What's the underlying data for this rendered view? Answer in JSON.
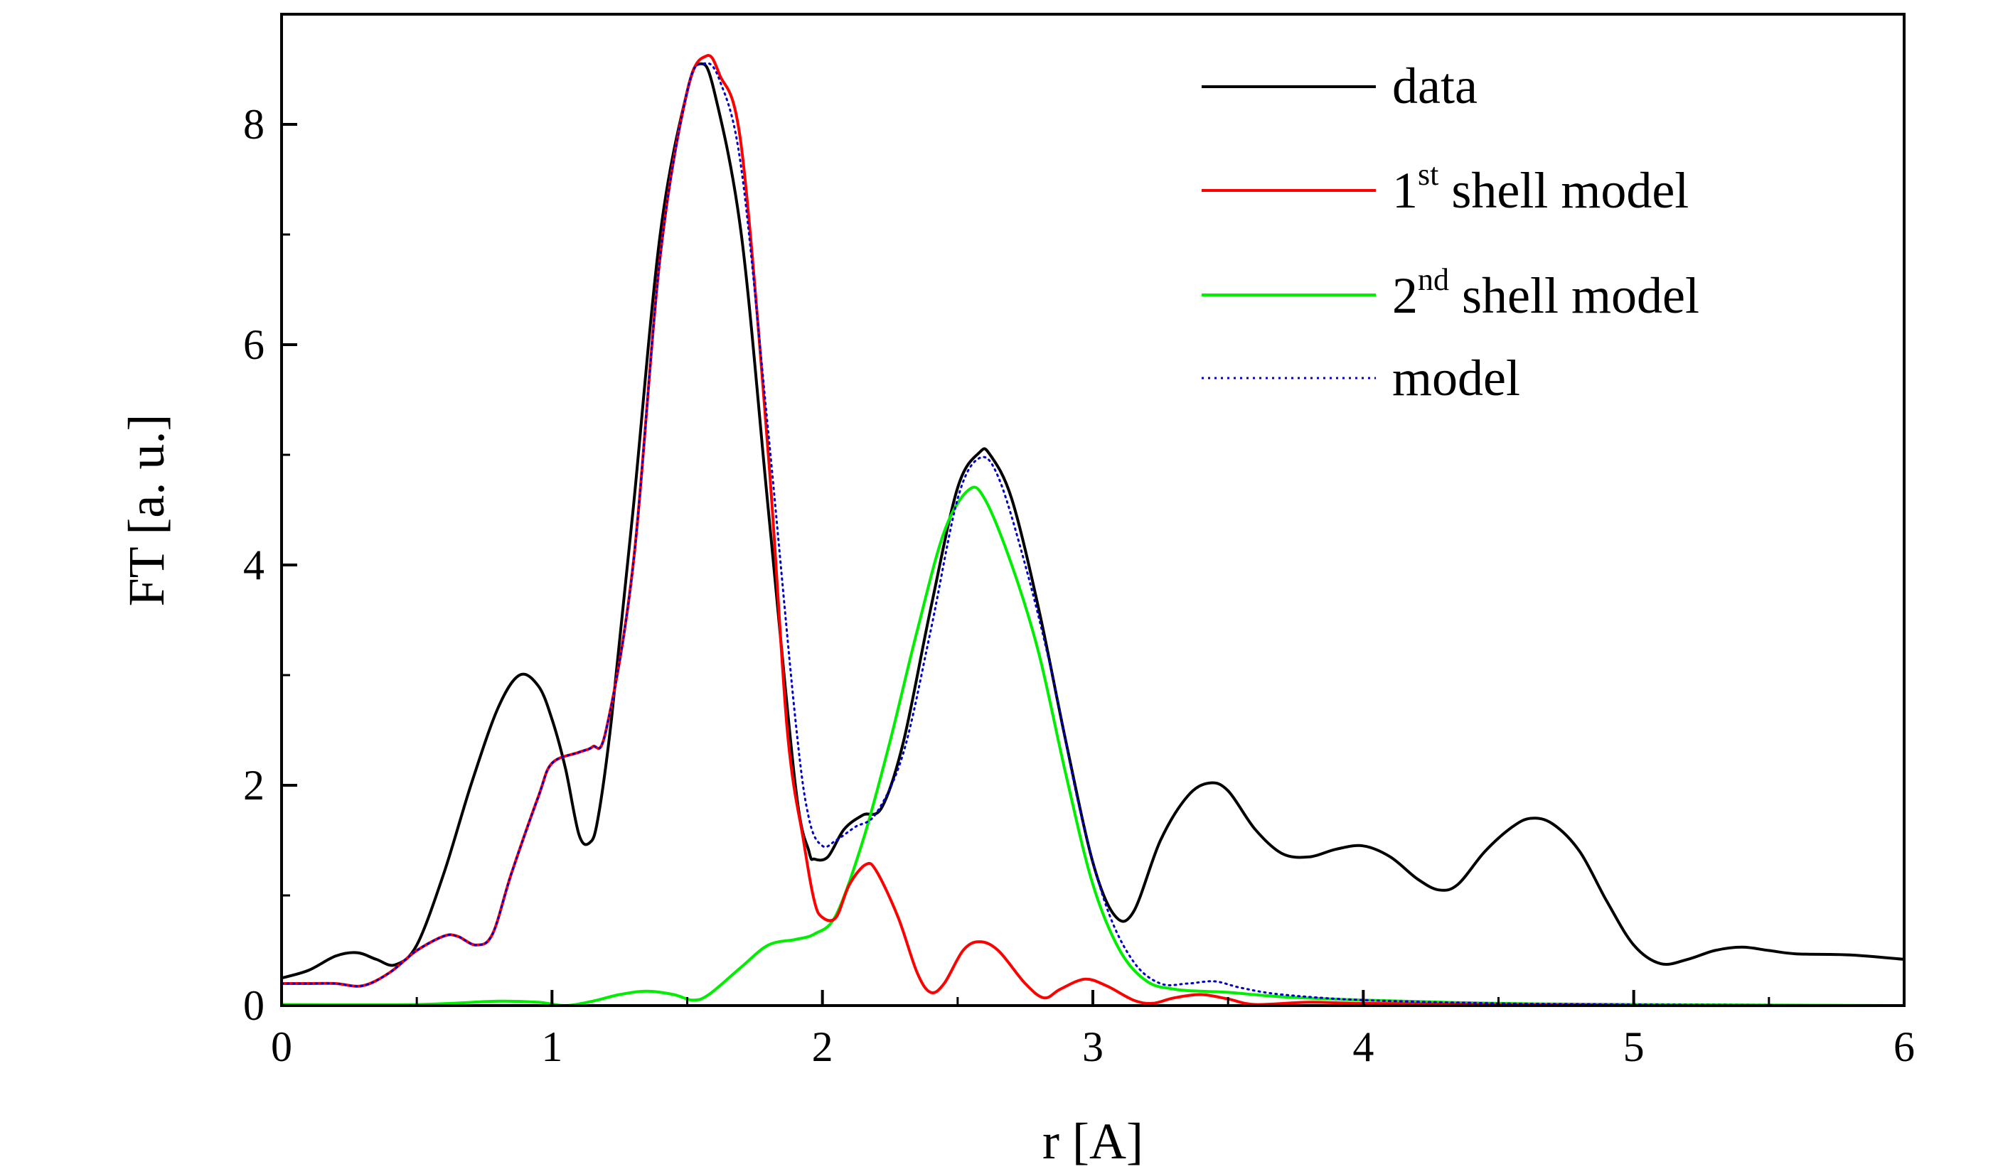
{
  "chart_data": {
    "type": "line",
    "xlabel": "r [A]",
    "ylabel": "FT [a. u.]",
    "xlim": [
      0,
      6
    ],
    "ylim": [
      0,
      9
    ],
    "xticks": [
      "0",
      "1",
      "2",
      "3",
      "4",
      "5",
      "6"
    ],
    "yticks": [
      "0",
      "2",
      "4",
      "6",
      "8"
    ],
    "grid": false,
    "legend_position": "top-right",
    "series": [
      {
        "name": "data",
        "color": "#000000",
        "style": "solid",
        "points": [
          [
            0,
            0.25
          ],
          [
            0.1,
            0.32
          ],
          [
            0.2,
            0.45
          ],
          [
            0.28,
            0.48
          ],
          [
            0.35,
            0.42
          ],
          [
            0.42,
            0.37
          ],
          [
            0.5,
            0.55
          ],
          [
            0.6,
            1.2
          ],
          [
            0.7,
            2.0
          ],
          [
            0.8,
            2.7
          ],
          [
            0.88,
            3.0
          ],
          [
            0.95,
            2.9
          ],
          [
            1.0,
            2.6
          ],
          [
            1.05,
            2.15
          ],
          [
            1.1,
            1.55
          ],
          [
            1.14,
            1.48
          ],
          [
            1.17,
            1.7
          ],
          [
            1.22,
            2.6
          ],
          [
            1.3,
            4.5
          ],
          [
            1.4,
            7.0
          ],
          [
            1.5,
            8.3
          ],
          [
            1.55,
            8.55
          ],
          [
            1.6,
            8.3
          ],
          [
            1.7,
            7.0
          ],
          [
            1.8,
            4.5
          ],
          [
            1.9,
            2.0
          ],
          [
            1.95,
            1.4
          ],
          [
            1.97,
            1.33
          ],
          [
            2.02,
            1.35
          ],
          [
            2.08,
            1.6
          ],
          [
            2.15,
            1.73
          ],
          [
            2.22,
            1.8
          ],
          [
            2.3,
            2.4
          ],
          [
            2.4,
            3.6
          ],
          [
            2.5,
            4.7
          ],
          [
            2.58,
            5.02
          ],
          [
            2.62,
            5.0
          ],
          [
            2.7,
            4.6
          ],
          [
            2.8,
            3.6
          ],
          [
            2.9,
            2.4
          ],
          [
            3.0,
            1.3
          ],
          [
            3.08,
            0.82
          ],
          [
            3.15,
            0.85
          ],
          [
            3.25,
            1.5
          ],
          [
            3.35,
            1.9
          ],
          [
            3.43,
            2.02
          ],
          [
            3.5,
            1.95
          ],
          [
            3.6,
            1.6
          ],
          [
            3.7,
            1.38
          ],
          [
            3.8,
            1.35
          ],
          [
            3.9,
            1.42
          ],
          [
            4.0,
            1.45
          ],
          [
            4.1,
            1.35
          ],
          [
            4.2,
            1.15
          ],
          [
            4.28,
            1.05
          ],
          [
            4.35,
            1.1
          ],
          [
            4.45,
            1.4
          ],
          [
            4.55,
            1.62
          ],
          [
            4.62,
            1.7
          ],
          [
            4.7,
            1.65
          ],
          [
            4.8,
            1.4
          ],
          [
            4.9,
            0.95
          ],
          [
            5.0,
            0.55
          ],
          [
            5.1,
            0.38
          ],
          [
            5.2,
            0.42
          ],
          [
            5.3,
            0.5
          ],
          [
            5.4,
            0.53
          ],
          [
            5.5,
            0.5
          ],
          [
            5.6,
            0.47
          ],
          [
            5.8,
            0.46
          ],
          [
            6.0,
            0.42
          ]
        ]
      },
      {
        "name": "1st shell model",
        "color": "#ff0000",
        "style": "solid",
        "points": [
          [
            0,
            0.2
          ],
          [
            0.1,
            0.2
          ],
          [
            0.2,
            0.2
          ],
          [
            0.3,
            0.18
          ],
          [
            0.4,
            0.3
          ],
          [
            0.5,
            0.5
          ],
          [
            0.6,
            0.63
          ],
          [
            0.65,
            0.63
          ],
          [
            0.72,
            0.55
          ],
          [
            0.78,
            0.65
          ],
          [
            0.85,
            1.2
          ],
          [
            0.95,
            1.9
          ],
          [
            1.0,
            2.2
          ],
          [
            1.1,
            2.3
          ],
          [
            1.15,
            2.35
          ],
          [
            1.2,
            2.5
          ],
          [
            1.3,
            4.0
          ],
          [
            1.4,
            6.8
          ],
          [
            1.5,
            8.3
          ],
          [
            1.57,
            8.62
          ],
          [
            1.62,
            8.45
          ],
          [
            1.7,
            7.8
          ],
          [
            1.8,
            5.0
          ],
          [
            1.87,
            2.5
          ],
          [
            1.93,
            1.5
          ],
          [
            1.97,
            0.95
          ],
          [
            2.0,
            0.8
          ],
          [
            2.05,
            0.8
          ],
          [
            2.1,
            1.1
          ],
          [
            2.16,
            1.28
          ],
          [
            2.2,
            1.22
          ],
          [
            2.28,
            0.8
          ],
          [
            2.35,
            0.3
          ],
          [
            2.4,
            0.12
          ],
          [
            2.45,
            0.2
          ],
          [
            2.52,
            0.5
          ],
          [
            2.58,
            0.58
          ],
          [
            2.65,
            0.5
          ],
          [
            2.75,
            0.2
          ],
          [
            2.82,
            0.07
          ],
          [
            2.88,
            0.15
          ],
          [
            2.97,
            0.24
          ],
          [
            3.05,
            0.18
          ],
          [
            3.15,
            0.05
          ],
          [
            3.22,
            0.02
          ],
          [
            3.3,
            0.07
          ],
          [
            3.4,
            0.1
          ],
          [
            3.5,
            0.06
          ],
          [
            3.6,
            0.01
          ],
          [
            3.8,
            0.03
          ],
          [
            4.0,
            0.02
          ],
          [
            4.5,
            0.01
          ],
          [
            5.0,
            0.0
          ],
          [
            6.0,
            0.0
          ]
        ]
      },
      {
        "name": "2nd shell model",
        "color": "#00ee00",
        "style": "solid",
        "points": [
          [
            0,
            0.01
          ],
          [
            0.5,
            0.01
          ],
          [
            0.8,
            0.04
          ],
          [
            0.95,
            0.03
          ],
          [
            1.05,
            0.0
          ],
          [
            1.15,
            0.04
          ],
          [
            1.25,
            0.1
          ],
          [
            1.35,
            0.13
          ],
          [
            1.45,
            0.1
          ],
          [
            1.52,
            0.05
          ],
          [
            1.58,
            0.1
          ],
          [
            1.7,
            0.35
          ],
          [
            1.8,
            0.55
          ],
          [
            1.9,
            0.6
          ],
          [
            1.97,
            0.65
          ],
          [
            2.05,
            0.82
          ],
          [
            2.15,
            1.5
          ],
          [
            2.25,
            2.4
          ],
          [
            2.35,
            3.4
          ],
          [
            2.45,
            4.3
          ],
          [
            2.54,
            4.68
          ],
          [
            2.6,
            4.6
          ],
          [
            2.7,
            4.0
          ],
          [
            2.8,
            3.2
          ],
          [
            2.9,
            2.1
          ],
          [
            3.0,
            1.1
          ],
          [
            3.1,
            0.5
          ],
          [
            3.2,
            0.22
          ],
          [
            3.3,
            0.15
          ],
          [
            3.4,
            0.13
          ],
          [
            3.5,
            0.12
          ],
          [
            3.7,
            0.08
          ],
          [
            4.0,
            0.05
          ],
          [
            4.5,
            0.02
          ],
          [
            5.0,
            0.01
          ],
          [
            6.0,
            0.0
          ]
        ]
      },
      {
        "name": "model",
        "color": "#0000cc",
        "style": "dotted",
        "points": [
          [
            0,
            0.2
          ],
          [
            0.1,
            0.2
          ],
          [
            0.2,
            0.2
          ],
          [
            0.3,
            0.18
          ],
          [
            0.4,
            0.3
          ],
          [
            0.5,
            0.5
          ],
          [
            0.6,
            0.63
          ],
          [
            0.65,
            0.63
          ],
          [
            0.72,
            0.55
          ],
          [
            0.78,
            0.65
          ],
          [
            0.85,
            1.2
          ],
          [
            0.95,
            1.9
          ],
          [
            1.0,
            2.2
          ],
          [
            1.1,
            2.3
          ],
          [
            1.15,
            2.35
          ],
          [
            1.2,
            2.5
          ],
          [
            1.3,
            4.0
          ],
          [
            1.4,
            6.8
          ],
          [
            1.5,
            8.3
          ],
          [
            1.56,
            8.55
          ],
          [
            1.62,
            8.4
          ],
          [
            1.7,
            7.6
          ],
          [
            1.8,
            5.2
          ],
          [
            1.9,
            2.6
          ],
          [
            1.95,
            1.7
          ],
          [
            2.0,
            1.45
          ],
          [
            2.05,
            1.5
          ],
          [
            2.12,
            1.62
          ],
          [
            2.2,
            1.75
          ],
          [
            2.3,
            2.3
          ],
          [
            2.4,
            3.4
          ],
          [
            2.5,
            4.6
          ],
          [
            2.58,
            4.97
          ],
          [
            2.65,
            4.8
          ],
          [
            2.75,
            4.0
          ],
          [
            2.85,
            3.0
          ],
          [
            2.95,
            1.8
          ],
          [
            3.05,
            0.9
          ],
          [
            3.15,
            0.4
          ],
          [
            3.25,
            0.2
          ],
          [
            3.35,
            0.2
          ],
          [
            3.45,
            0.22
          ],
          [
            3.55,
            0.16
          ],
          [
            3.7,
            0.1
          ],
          [
            4.0,
            0.05
          ],
          [
            4.5,
            0.02
          ],
          [
            5.0,
            0.01
          ],
          [
            6.0,
            0.0
          ]
        ]
      }
    ]
  },
  "legend": {
    "data": "data",
    "first_shell_num": "1",
    "first_shell_sup": "st",
    "first_shell_rest": " shell model",
    "second_shell_num": "2",
    "second_shell_sup": "nd",
    "second_shell_rest": " shell model",
    "model": "model"
  }
}
